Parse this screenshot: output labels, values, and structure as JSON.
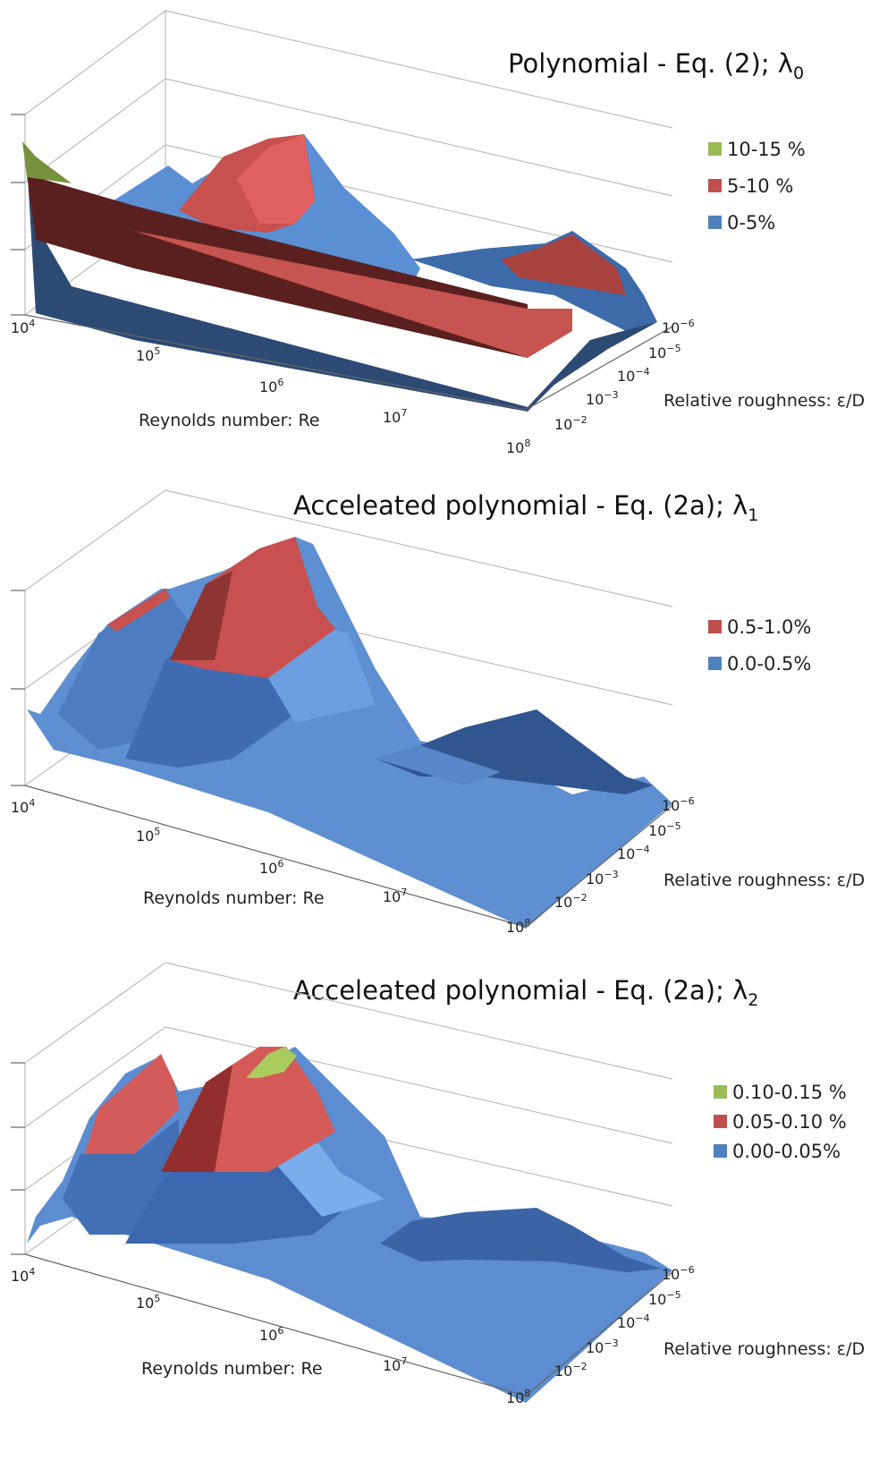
{
  "chart_data": [
    {
      "type": "surface",
      "title": "Polynomial - Eq. (2); λ",
      "title_sub": "0",
      "xlabel": "Reynolds number: Re",
      "ylabel": "Relative roughness: ε/D",
      "x_ticks": [
        {
          "base": "10",
          "exp": "4"
        },
        {
          "base": "10",
          "exp": "5"
        },
        {
          "base": "10",
          "exp": "6"
        },
        {
          "base": "10",
          "exp": "7"
        },
        {
          "base": "10",
          "exp": "8"
        }
      ],
      "y_ticks": [
        {
          "base": "10",
          "exp": "−6"
        },
        {
          "base": "10",
          "exp": "−5"
        },
        {
          "base": "10",
          "exp": "−4"
        },
        {
          "base": "10",
          "exp": "−3"
        },
        {
          "base": "10",
          "exp": "−2"
        }
      ],
      "z_range": [
        0,
        15
      ],
      "legend": [
        {
          "label": "10-15 %",
          "color": "#9bbb59"
        },
        {
          "label": "5-10 %",
          "color": "#c0504d"
        },
        {
          "label": "0-5%",
          "color": "#4f81bd"
        }
      ],
      "legend_placement": "right",
      "grid": true
    },
    {
      "type": "surface",
      "title": "Acceleated polynomial - Eq. (2a); λ",
      "title_sub": "1",
      "xlabel": "Reynolds number: Re",
      "ylabel": "Relative roughness: ε/D",
      "x_ticks": [
        {
          "base": "10",
          "exp": "4"
        },
        {
          "base": "10",
          "exp": "5"
        },
        {
          "base": "10",
          "exp": "6"
        },
        {
          "base": "10",
          "exp": "7"
        },
        {
          "base": "10",
          "exp": "8"
        }
      ],
      "y_ticks": [
        {
          "base": "10",
          "exp": "−6"
        },
        {
          "base": "10",
          "exp": "−5"
        },
        {
          "base": "10",
          "exp": "−4"
        },
        {
          "base": "10",
          "exp": "−3"
        },
        {
          "base": "10",
          "exp": "−2"
        }
      ],
      "z_range": [
        0,
        1.0
      ],
      "legend": [
        {
          "label": "0.5-1.0%",
          "color": "#c0504d"
        },
        {
          "label": "0.0-0.5%",
          "color": "#4f81bd"
        }
      ],
      "legend_placement": "right",
      "grid": true
    },
    {
      "type": "surface",
      "title": "Acceleated polynomial - Eq. (2a); λ",
      "title_sub": "2",
      "xlabel": "Reynolds number: Re",
      "ylabel": "Relative roughness: ε/D",
      "x_ticks": [
        {
          "base": "10",
          "exp": "4"
        },
        {
          "base": "10",
          "exp": "5"
        },
        {
          "base": "10",
          "exp": "6"
        },
        {
          "base": "10",
          "exp": "7"
        },
        {
          "base": "10",
          "exp": "8"
        }
      ],
      "y_ticks": [
        {
          "base": "10",
          "exp": "−6"
        },
        {
          "base": "10",
          "exp": "−5"
        },
        {
          "base": "10",
          "exp": "−4"
        },
        {
          "base": "10",
          "exp": "−3"
        },
        {
          "base": "10",
          "exp": "−2"
        }
      ],
      "z_range": [
        0,
        0.15
      ],
      "legend": [
        {
          "label": "0.10-0.15 %",
          "color": "#9bbb59"
        },
        {
          "label": "0.05-0.10 %",
          "color": "#c0504d"
        },
        {
          "label": "0.00-0.05%",
          "color": "#4f81bd"
        }
      ],
      "legend_placement": "right",
      "grid": true
    }
  ]
}
